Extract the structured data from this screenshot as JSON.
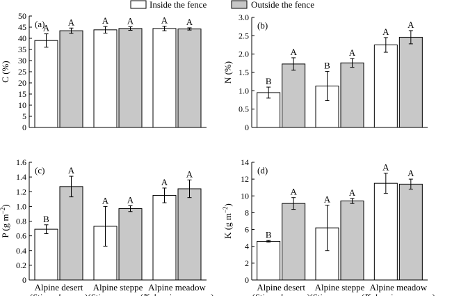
{
  "legend": [
    {
      "label": "Inside the fence",
      "color": "#ffffff"
    },
    {
      "label": "Outside the fence",
      "color": "#c8c8c8"
    }
  ],
  "site_labels": [
    {
      "name": "Alpine desert",
      "species": "Stipa glareosa"
    },
    {
      "name": "Alpine steppe",
      "species": "Stipa purpurea"
    },
    {
      "name": "Alpine meadow",
      "species": "Kobresia pygmaea"
    }
  ],
  "chart_data": [
    {
      "type": "bar",
      "panel": "(a)",
      "ylabel": "C (%)",
      "ylabel_sup": "",
      "ylabel_tail": "",
      "ylim": [
        0,
        50
      ],
      "yticks": [
        "0",
        "5",
        "10",
        "15",
        "20",
        "25",
        "30",
        "35",
        "40",
        "45",
        "50"
      ],
      "categories": [
        "Alpine desert",
        "Alpine steppe",
        "Alpine meadow"
      ],
      "series": [
        {
          "name": "Inside the fence",
          "values": [
            39.0,
            43.8,
            44.4
          ],
          "errors": [
            3.0,
            1.5,
            1.0
          ],
          "letters": [
            "A",
            "A",
            "A"
          ]
        },
        {
          "name": "Outside the fence",
          "values": [
            43.4,
            44.4,
            44.2
          ],
          "errors": [
            1.2,
            0.8,
            0.5
          ],
          "letters": [
            "A",
            "A",
            "A"
          ]
        }
      ]
    },
    {
      "type": "bar",
      "panel": "(b)",
      "ylabel": "N (%)",
      "ylabel_sup": "",
      "ylabel_tail": "",
      "ylim": [
        0,
        3.0
      ],
      "yticks": [
        "0",
        "0.5",
        "1.0",
        "1.5",
        "2.0",
        "2.5",
        "3.0"
      ],
      "categories": [
        "Alpine desert",
        "Alpine steppe",
        "Alpine meadow"
      ],
      "series": [
        {
          "name": "Inside the fence",
          "values": [
            0.95,
            1.13,
            2.25
          ],
          "errors": [
            0.15,
            0.4,
            0.2
          ],
          "letters": [
            "B",
            "B",
            "A"
          ]
        },
        {
          "name": "Outside the fence",
          "values": [
            1.73,
            1.76,
            2.46
          ],
          "errors": [
            0.17,
            0.12,
            0.18
          ],
          "letters": [
            "A",
            "A",
            "A"
          ]
        }
      ]
    },
    {
      "type": "bar",
      "panel": "(c)",
      "ylabel": "P (g m",
      "ylabel_sup": "−2",
      "ylabel_tail": ")",
      "ylim": [
        0,
        1.6
      ],
      "yticks": [
        "0",
        "0.2",
        "0.4",
        "0.6",
        "0.8",
        "1.0",
        "1.2",
        "1.4",
        "1.6"
      ],
      "categories": [
        "Alpine desert",
        "Alpine steppe",
        "Alpine meadow"
      ],
      "series": [
        {
          "name": "Inside the fence",
          "values": [
            0.69,
            0.73,
            1.15
          ],
          "errors": [
            0.06,
            0.27,
            0.1
          ],
          "letters": [
            "B",
            "A",
            "A"
          ]
        },
        {
          "name": "Outside the fence",
          "values": [
            1.27,
            0.97,
            1.24
          ],
          "errors": [
            0.14,
            0.04,
            0.12
          ],
          "letters": [
            "A",
            "A",
            "A"
          ]
        }
      ]
    },
    {
      "type": "bar",
      "panel": "(d)",
      "ylabel": "K (g m",
      "ylabel_sup": "−2",
      "ylabel_tail": ")",
      "ylim": [
        0,
        14
      ],
      "yticks": [
        "0",
        "2",
        "4",
        "6",
        "8",
        "10",
        "12",
        "14"
      ],
      "categories": [
        "Alpine desert",
        "Alpine steppe",
        "Alpine meadow"
      ],
      "series": [
        {
          "name": "Inside the fence",
          "values": [
            4.6,
            6.2,
            11.5
          ],
          "errors": [
            0.1,
            2.7,
            1.2
          ],
          "letters": [
            "B",
            "A",
            "A"
          ]
        },
        {
          "name": "Outside the fence",
          "values": [
            9.1,
            9.4,
            11.4
          ],
          "errors": [
            0.7,
            0.3,
            0.6
          ],
          "letters": [
            "A",
            "A",
            "A"
          ]
        }
      ]
    }
  ]
}
